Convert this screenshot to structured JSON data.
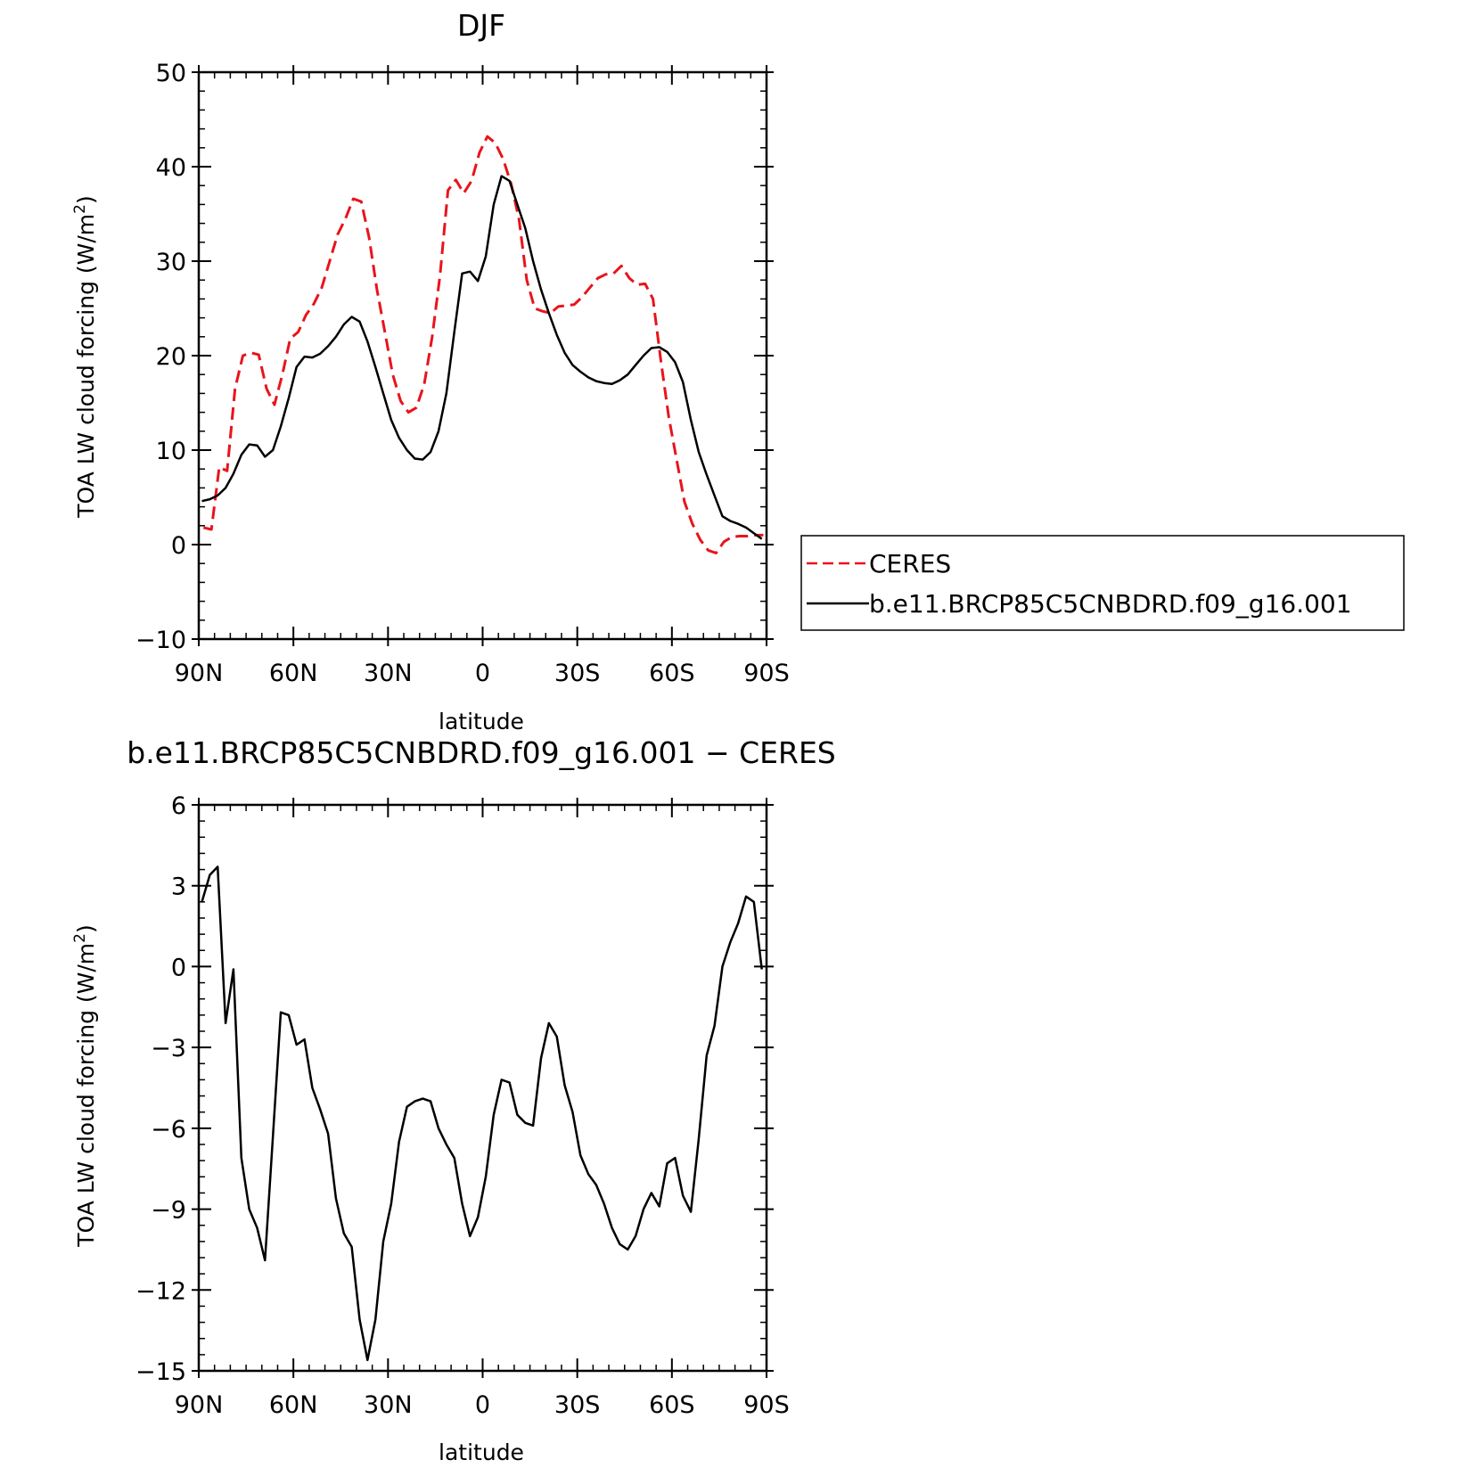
{
  "colors": {
    "ceres": "#e8141c",
    "model": "#000000",
    "axis": "#000000"
  },
  "legend": {
    "entries": [
      {
        "name": "CERES",
        "color": "#e8141c",
        "dash": true
      },
      {
        "name": "b.e11.BRCP85C5CNBDRD.f09_g16.001",
        "color": "#000000",
        "dash": false
      }
    ],
    "placement": "right of top panel"
  },
  "chart_data": [
    {
      "type": "line",
      "title": "DJF",
      "xlabel": "latitude",
      "ylabel_text": "TOA LW cloud forcing (W/m",
      "ylabel_sup": "2",
      "ylabel_close": ")",
      "xlim": [
        90,
        -90
      ],
      "ylim": [
        -10,
        50
      ],
      "xticks": [
        {
          "value": 90,
          "label": "90N"
        },
        {
          "value": 60,
          "label": "60N"
        },
        {
          "value": 30,
          "label": "30N"
        },
        {
          "value": 0,
          "label": "0"
        },
        {
          "value": -30,
          "label": "30S"
        },
        {
          "value": -60,
          "label": "60S"
        },
        {
          "value": -90,
          "label": "90S"
        }
      ],
      "yticks": [
        {
          "value": -10,
          "label": "−10"
        },
        {
          "value": 0,
          "label": "0"
        },
        {
          "value": 10,
          "label": "10"
        },
        {
          "value": 20,
          "label": "20"
        },
        {
          "value": 30,
          "label": "30"
        },
        {
          "value": 40,
          "label": "40"
        },
        {
          "value": 50,
          "label": "50"
        }
      ],
      "series": [
        {
          "name": "CERES",
          "color": "#e8141c",
          "dash": true,
          "x": [
            88.5,
            86,
            83.5,
            81,
            78.5,
            76,
            73.5,
            71,
            68.5,
            66,
            63.5,
            61,
            58.5,
            56,
            53.5,
            51,
            48.5,
            46,
            43.5,
            41,
            38.5,
            36,
            33.5,
            31,
            28.5,
            26,
            23.5,
            21,
            18.5,
            16,
            13.5,
            11,
            8.5,
            6,
            3.5,
            1,
            -1.5,
            -4,
            -6.5,
            -9,
            -11.5,
            -14,
            -16.5,
            -19,
            -21.5,
            -24,
            -26.5,
            -29,
            -31.5,
            -34,
            -36.5,
            -39,
            -41.5,
            -44,
            -46.5,
            -49,
            -51.5,
            -54,
            -56.5,
            -59,
            -61.5,
            -64,
            -66.5,
            -69,
            -71.5,
            -74,
            -76.5,
            -79,
            -81.5,
            -84,
            -86.5,
            -89
          ],
          "y": [
            1.8,
            1.6,
            8.2,
            7.8,
            16.5,
            20.0,
            20.3,
            20.1,
            16.5,
            14.8,
            18.0,
            21.8,
            22.5,
            24.3,
            25.5,
            27.2,
            30.0,
            32.8,
            34.5,
            36.6,
            36.3,
            32.5,
            27.0,
            22.5,
            18.0,
            15.2,
            14.0,
            14.5,
            17.0,
            22.0,
            28.5,
            37.5,
            38.6,
            37.2,
            38.5,
            41.5,
            43.2,
            42.5,
            40.8,
            38.2,
            34.5,
            28.0,
            25.0,
            24.7,
            24.5,
            25.2,
            25.3,
            25.4,
            26.2,
            27.2,
            28.2,
            28.6,
            28.7,
            29.5,
            28.2,
            27.5,
            27.6,
            26.0,
            19.5,
            13.5,
            9.0,
            4.5,
            2.2,
            0.5,
            -0.6,
            -0.9,
            0.3,
            0.8,
            0.9,
            0.9,
            1.0,
            1.0
          ],
          "truncate_after_index": 40
        },
        {
          "name": "b.e11.BRCP85C5CNBDRD.f09_g16.001",
          "color": "#000000",
          "dash": false,
          "x": [
            89,
            86.5,
            84,
            81.5,
            79,
            76.5,
            74,
            71.5,
            69,
            66.5,
            64,
            61.5,
            59,
            56.5,
            54,
            51.5,
            49,
            46.5,
            44,
            41.5,
            39,
            36.5,
            34,
            31.5,
            29,
            26.5,
            24,
            21.5,
            19,
            16.5,
            14,
            11.5,
            9,
            6.5,
            4,
            1.5,
            -1,
            -3.5,
            -6,
            -8.5,
            -11,
            -13.5,
            -16,
            -18.5,
            -21,
            -23.5,
            -26,
            -28.5,
            -31,
            -33.5,
            -36,
            -38.5,
            -41,
            -43.5,
            -46,
            -48.5,
            -51,
            -53.5,
            -56,
            -58.5,
            -61,
            -63.5,
            -66,
            -68.5,
            -71,
            -73.5,
            -76,
            -78.5,
            -81,
            -83.5,
            -86,
            -88.5
          ],
          "y": [
            4.6,
            4.8,
            5.2,
            6.0,
            7.5,
            9.5,
            10.6,
            10.5,
            9.3,
            10.0,
            12.5,
            15.5,
            18.8,
            19.9,
            19.8,
            20.2,
            21.0,
            22.0,
            23.3,
            24.1,
            23.6,
            21.5,
            18.8,
            16.0,
            13.2,
            11.3,
            10.0,
            9.1,
            9.0,
            9.8,
            12.0,
            16.0,
            22.5,
            28.7,
            28.9,
            27.9,
            30.5,
            36.0,
            39.0,
            38.5,
            36.0,
            33.5,
            30.0,
            27.0,
            24.5,
            22.2,
            20.3,
            19.0,
            18.3,
            17.7,
            17.3,
            17.1,
            17.0,
            17.4,
            18.0,
            19.0,
            20.0,
            20.8,
            20.9,
            20.4,
            19.3,
            17.2,
            13.2,
            9.8,
            7.4,
            5.2,
            3.0,
            2.5,
            2.2,
            1.8,
            1.2,
            0.6
          ]
        }
      ]
    },
    {
      "type": "line",
      "title": "b.e11.BRCP85C5CNBDRD.f09_g16.001 − CERES",
      "xlabel": "latitude",
      "ylabel_text": "TOA LW cloud forcing (W/m",
      "ylabel_sup": "2",
      "ylabel_close": ")",
      "xlim": [
        90,
        -90
      ],
      "ylim": [
        -15,
        6
      ],
      "xticks": [
        {
          "value": 90,
          "label": "90N"
        },
        {
          "value": 60,
          "label": "60N"
        },
        {
          "value": 30,
          "label": "30N"
        },
        {
          "value": 0,
          "label": "0"
        },
        {
          "value": -30,
          "label": "30S"
        },
        {
          "value": -60,
          "label": "60S"
        },
        {
          "value": -90,
          "label": "90S"
        }
      ],
      "yticks": [
        {
          "value": -15,
          "label": "−15"
        },
        {
          "value": -12,
          "label": "−12"
        },
        {
          "value": -9,
          "label": "−9"
        },
        {
          "value": -6,
          "label": "−6"
        },
        {
          "value": -3,
          "label": "−3"
        },
        {
          "value": 0,
          "label": "0"
        },
        {
          "value": 3,
          "label": "3"
        },
        {
          "value": 6,
          "label": "6"
        }
      ],
      "series": [
        {
          "name": "b.e11.BRCP85C5CNBDRD.f09_g16.001 − CERES",
          "color": "#000000",
          "dash": false,
          "x": [
            89,
            86.5,
            84,
            81.5,
            79,
            76.5,
            74,
            71.5,
            69,
            66.5,
            64,
            61.5,
            59,
            56.5,
            54,
            51.5,
            49,
            46.5,
            44,
            41.5,
            39,
            36.5,
            34,
            31.5,
            29,
            26.5,
            24,
            21.5,
            19,
            16.5,
            14,
            11.5,
            9,
            6.5,
            4,
            1.5,
            -1,
            -3.5,
            -6,
            -8.5,
            -11,
            -13.5,
            -16,
            -18.5,
            -21,
            -23.5,
            -26,
            -28.5,
            -31,
            -33.5,
            -36,
            -38.5,
            -41,
            -43.5,
            -46,
            -48.5,
            -51,
            -53.5,
            -56,
            -58.5,
            -61,
            -63.5,
            -66,
            -68.5,
            -71,
            -73.5,
            -76,
            -78.5,
            -81,
            -83.5,
            -86,
            -88.5
          ],
          "y": [
            2.4,
            3.4,
            3.7,
            -2.1,
            -0.1,
            -7.1,
            -9.0,
            -9.7,
            -10.9,
            -6.3,
            -1.7,
            -1.8,
            -2.9,
            -2.7,
            -4.5,
            -5.3,
            -6.2,
            -8.6,
            -9.9,
            -10.4,
            -13.1,
            -14.6,
            -13.1,
            -10.2,
            -8.8,
            -6.5,
            -5.2,
            -5.0,
            -4.9,
            -5.0,
            -6.0,
            -6.6,
            -7.1,
            -8.8,
            -10.0,
            -9.3,
            -7.8,
            -5.5,
            -4.2,
            -4.3,
            -5.5,
            -5.8,
            -5.9,
            -3.4,
            -2.1,
            -2.6,
            -4.4,
            -5.4,
            -7.0,
            -7.7,
            -8.1,
            -8.8,
            -9.7,
            -10.3,
            -10.5,
            -10.0,
            -9.0,
            -8.4,
            -8.9,
            -7.3,
            -7.1,
            -8.5,
            -9.1,
            -6.4,
            -3.3,
            -2.2,
            0.0,
            0.9,
            1.6,
            2.6,
            2.4,
            -0.1
          ]
        }
      ]
    }
  ]
}
